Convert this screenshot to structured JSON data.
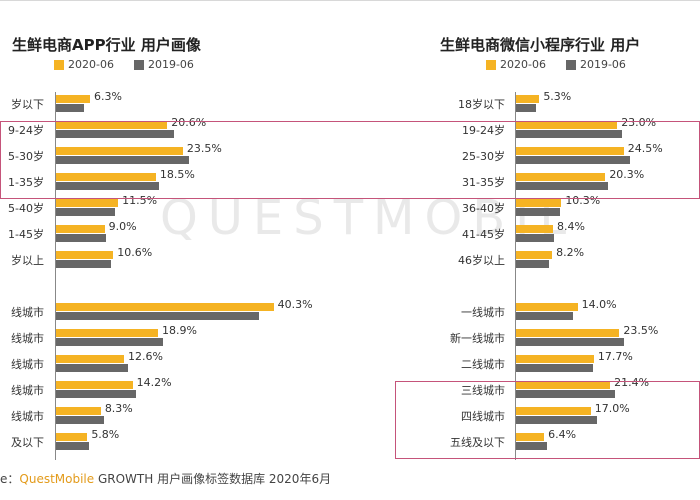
{
  "colors": {
    "series_2020": "#f5b323",
    "series_2019": "#676767",
    "highlight": "#c5547a",
    "brand": "#e39b1b"
  },
  "watermark": "QUESTMOBIL",
  "chart_data": [
    {
      "type": "bar",
      "orientation": "horizontal",
      "title": "生鲜电商APP行业 用户画像",
      "legend": [
        "2020-06",
        "2019-06"
      ],
      "categories": [
        "岁以下",
        "9-24岁",
        "5-30岁",
        "1-35岁",
        "5-40岁",
        "1-45岁",
        "岁以上",
        "线城市",
        "线城市",
        "线城市",
        "线城市",
        "线城市",
        "及以下"
      ],
      "series": [
        {
          "name": "2020-06",
          "values": [
            6.3,
            20.6,
            23.5,
            18.5,
            11.5,
            9.0,
            10.6,
            40.3,
            18.9,
            12.6,
            14.2,
            8.3,
            5.8
          ]
        },
        {
          "name": "2019-06",
          "values": [
            5.2,
            21.8,
            24.6,
            19.1,
            11.0,
            9.3,
            10.2,
            37.5,
            19.8,
            13.3,
            14.8,
            8.9,
            6.2
          ]
        }
      ],
      "labels": [
        "6.3%",
        "20.6%",
        "23.5%",
        "18.5%",
        "11.5%",
        "9.0%",
        "10.6%",
        "40.3%",
        "18.9%",
        "12.6%",
        "14.2%",
        "8.3%",
        "5.8%"
      ]
    },
    {
      "type": "bar",
      "orientation": "horizontal",
      "title": "生鲜电商微信小程序行业 用户",
      "legend": [
        "2020-06",
        "2019-06"
      ],
      "categories": [
        "18岁以下",
        "19-24岁",
        "25-30岁",
        "31-35岁",
        "36-40岁",
        "41-45岁",
        "46岁以上",
        "一线城市",
        "新一线城市",
        "二线城市",
        "三线城市",
        "四线城市",
        "五线及以下"
      ],
      "series": [
        {
          "name": "2020-06",
          "values": [
            5.3,
            23.0,
            24.5,
            20.3,
            10.3,
            8.4,
            8.2,
            14.0,
            23.5,
            17.7,
            21.4,
            17.0,
            6.4
          ]
        },
        {
          "name": "2019-06",
          "values": [
            4.5,
            24.0,
            26.0,
            20.8,
            10.0,
            8.6,
            7.4,
            13.0,
            24.5,
            17.5,
            22.5,
            18.5,
            7.0
          ]
        }
      ],
      "labels": [
        "5.3%",
        "23.0%",
        "24.5%",
        "20.3%",
        "10.3%",
        "8.4%",
        "8.2%",
        "14.0%",
        "23.5%",
        "17.7%",
        "21.4%",
        "17.0%",
        "6.4%"
      ]
    }
  ],
  "source": {
    "prefix": "e：",
    "brand": "QuestMobile",
    "rest": " GROWTH 用户画像标签数据库 2020年6月"
  }
}
